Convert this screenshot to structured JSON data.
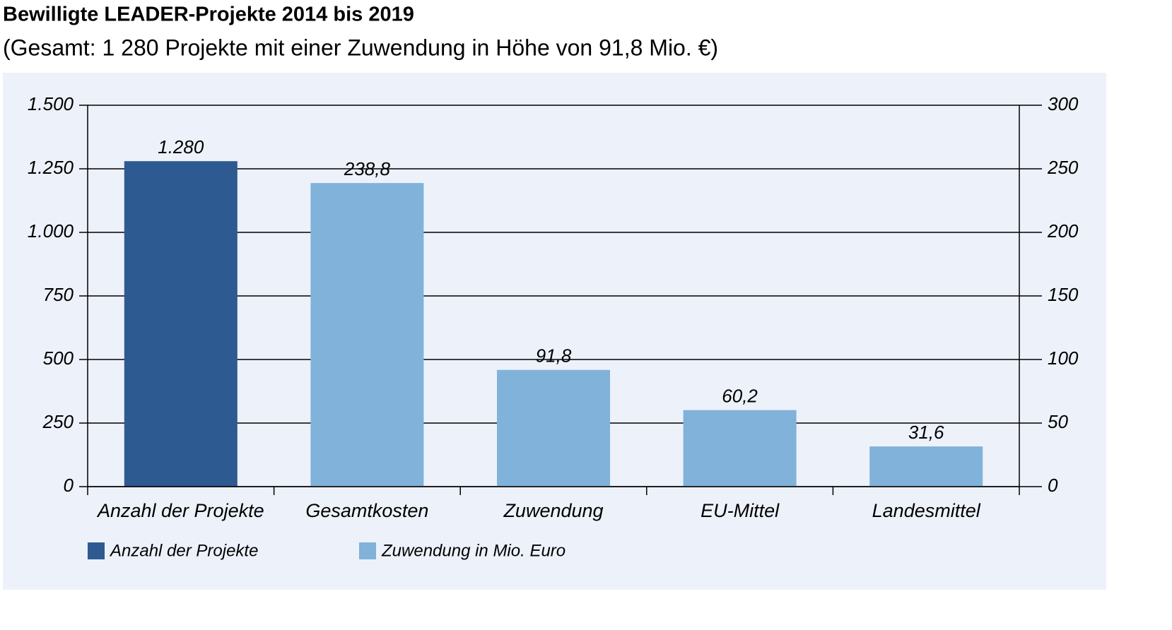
{
  "chart_data": {
    "type": "bar",
    "title": "Bewilligte LEADER-Projekte 2014 bis 2019",
    "subtitle": "(Gesamt: 1 280 Projekte mit einer Zuwendung in Höhe von 91,8 Mio. €)",
    "categories": [
      "Anzahl der Projekte",
      "Gesamtkosten",
      "Zuwendung",
      "EU-Mittel",
      "Landesmittel"
    ],
    "series": [
      {
        "name": "Anzahl der Projekte",
        "color": "#2e5a92",
        "axis": "y",
        "values": [
          1280,
          null,
          null,
          null,
          null
        ],
        "value_labels": [
          "1.280",
          null,
          null,
          null,
          null
        ]
      },
      {
        "name": "Zuwendung in Mio. Euro",
        "color": "#80b2da",
        "axis": "y2",
        "values": [
          null,
          238.8,
          91.8,
          60.2,
          31.6
        ],
        "value_labels": [
          null,
          "238,8",
          "91,8",
          "60,2",
          "31,6"
        ]
      }
    ],
    "ylim": [
      0,
      1500
    ],
    "yticks": [
      0,
      250,
      500,
      750,
      {
        "value": 1000,
        "label": "1.000"
      },
      {
        "value": 1250,
        "label": "1.250"
      },
      {
        "value": 1500,
        "label": "1.500"
      }
    ],
    "y2lim": [
      0,
      300
    ],
    "y2ticks": [
      0,
      50,
      100,
      150,
      200,
      250,
      300
    ],
    "grid": true
  }
}
